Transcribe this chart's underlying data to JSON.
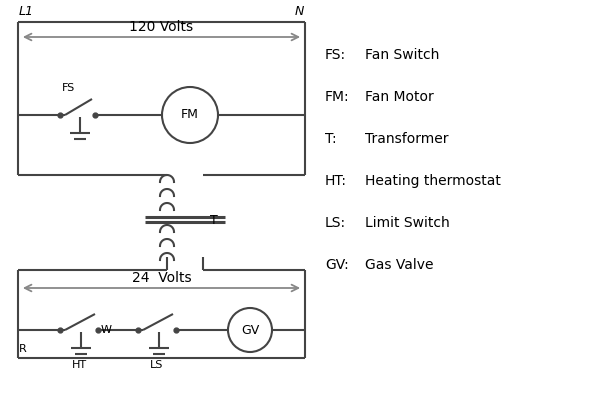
{
  "background_color": "#ffffff",
  "line_color": "#444444",
  "arrow_color": "#888888",
  "text_color": "#000000",
  "legend_items": [
    [
      "FS:",
      "Fan Switch"
    ],
    [
      "FM:",
      "Fan Motor"
    ],
    [
      "T:",
      "Transformer"
    ],
    [
      "HT:",
      "Heating thermostat"
    ],
    [
      "LS:",
      "Limit Switch"
    ],
    [
      "GV:",
      "Gas Valve"
    ]
  ],
  "font_sizes": {
    "component_label": 8,
    "legend_key": 10,
    "legend_value": 10,
    "rail_label": 9,
    "volts_label": 10
  }
}
